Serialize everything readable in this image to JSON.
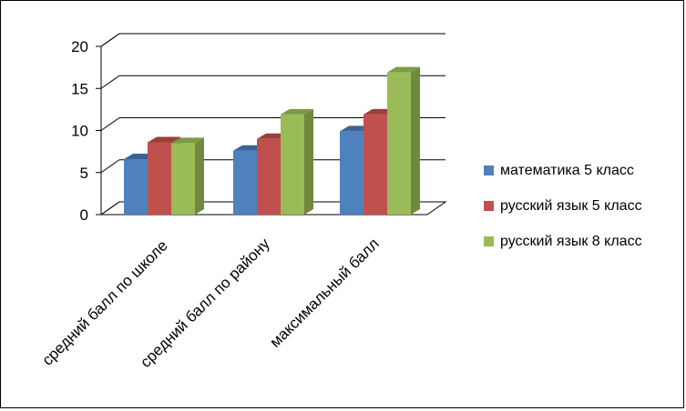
{
  "chart_data": {
    "type": "bar",
    "categories": [
      "средний балл по школе",
      "средний балл по району",
      "максимальный  балл"
    ],
    "series": [
      {
        "name": "математика 5 класс",
        "values": [
          6.6,
          7.6,
          9.9
        ],
        "color": "#4F81BD",
        "side": "#385D8A",
        "top": "#3B6494"
      },
      {
        "name": "русский язык 5 класс",
        "values": [
          8.6,
          9.0,
          11.9
        ],
        "color": "#C0504D",
        "side": "#8C3836",
        "top": "#9E3E3B"
      },
      {
        "name": "русский язык 8 класс",
        "values": [
          8.5,
          11.9,
          16.9
        ],
        "color": "#9BBB59",
        "side": "#71893F",
        "top": "#7D9A44"
      }
    ],
    "yticks": [
      0,
      5,
      10,
      15,
      20
    ],
    "ylim": [
      0,
      20
    ],
    "grid": true,
    "legend_position": "right",
    "title": "",
    "xlabel": "",
    "ylabel": ""
  }
}
